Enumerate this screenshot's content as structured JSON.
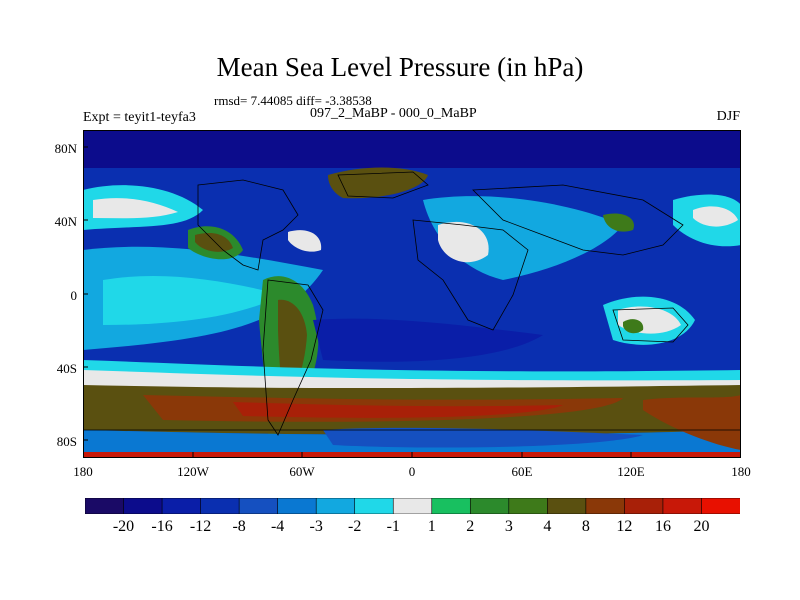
{
  "title": "Mean Sea Level Pressure (in hPa)",
  "stats": "rmsd= 7.44085 diff= -3.38538",
  "experiment": "Expt = teyit1-teyfa3",
  "period": "097_2_MaBP - 000_0_MaBP",
  "season": "DJF",
  "lat_labels": [
    "80N",
    "40N",
    "0",
    "40S",
    "80S"
  ],
  "lon_labels": [
    "180",
    "120W",
    "60W",
    "0",
    "60E",
    "120E",
    "180"
  ],
  "colorbar": {
    "labels": [
      "-20",
      "-16",
      "-12",
      "-8",
      "-4",
      "-3",
      "-2",
      "-1",
      "1",
      "2",
      "3",
      "4",
      "8",
      "12",
      "16",
      "20"
    ],
    "colors": [
      "#1a0a66",
      "#0c0c8c",
      "#0a1ea8",
      "#0a2fb0",
      "#1550c0",
      "#0a78d2",
      "#12a8e0",
      "#20d8e8",
      "#e8e8e8",
      "#18c060",
      "#2c8a2c",
      "#3e7a1a",
      "#5a5010",
      "#8a3808",
      "#a82008",
      "#c81808",
      "#e81000"
    ]
  }
}
